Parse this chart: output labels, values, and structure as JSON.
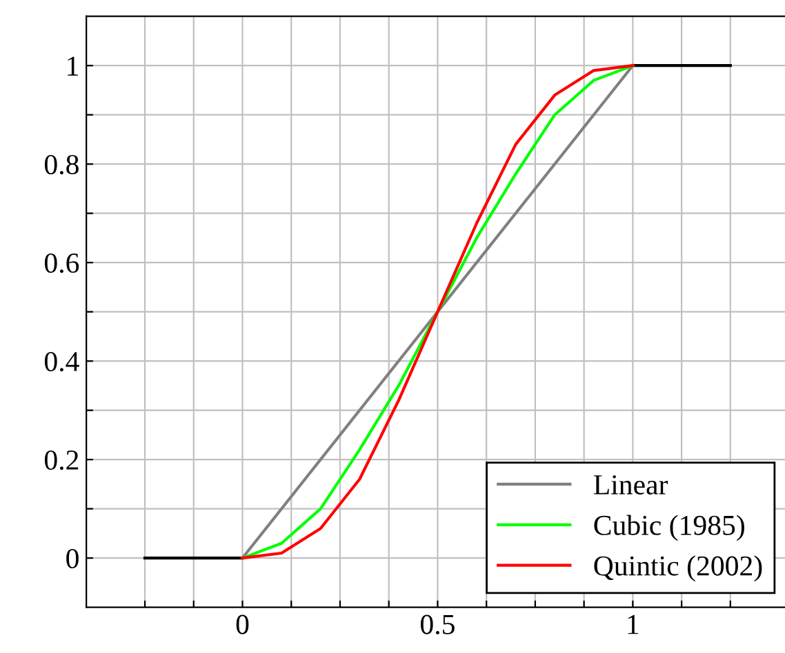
{
  "chart_data": {
    "type": "line",
    "xlim": [
      -0.4,
      1.4
    ],
    "ylim": [
      -0.1,
      1.1
    ],
    "xticks": [
      {
        "value": -0.25,
        "label": null
      },
      {
        "value": -0.125,
        "label": null
      },
      0,
      {
        "value": 0.125,
        "label": null
      },
      {
        "value": 0.25,
        "label": null
      },
      {
        "value": 0.375,
        "label": null
      },
      0.5,
      {
        "value": 0.625,
        "label": null
      },
      {
        "value": 0.75,
        "label": null
      },
      {
        "value": 0.875,
        "label": null
      },
      1,
      {
        "value": 1.125,
        "label": null
      },
      {
        "value": 1.25,
        "label": null
      }
    ],
    "yticks": [
      0,
      {
        "value": 0.1,
        "label": null
      },
      0.2,
      {
        "value": 0.3,
        "label": null
      },
      0.4,
      {
        "value": 0.5,
        "label": null
      },
      0.6,
      {
        "value": 0.7,
        "label": null
      },
      0.8,
      {
        "value": 0.9,
        "label": null
      },
      1
    ],
    "grid": true,
    "legend": "bottom right",
    "marker": "none",
    "line_style": "solid",
    "series": [
      {
        "color": "#000000",
        "x": [
          -0.25,
          0
        ],
        "values": [
          0,
          0
        ]
      },
      {
        "color": "#000000",
        "x": [
          1,
          1.25
        ],
        "values": [
          1,
          1
        ]
      },
      {
        "name": "Linear",
        "color": "#808080",
        "x": [
          0,
          1
        ],
        "values": [
          0,
          1
        ]
      },
      {
        "name": "Cubic (1985)",
        "color": "#00ff00",
        "x": [
          0,
          0.1,
          0.2,
          0.3,
          0.4,
          0.5,
          0.6,
          0.7,
          0.8,
          0.9,
          1
        ],
        "values": [
          0,
          0.03,
          0.1,
          0.22,
          0.35,
          0.5,
          0.65,
          0.78,
          0.9,
          0.97,
          1
        ]
      },
      {
        "name": "Quintic (2002)",
        "color": "#ff0000",
        "x": [
          0,
          0.1,
          0.2,
          0.3,
          0.4,
          0.5,
          0.6,
          0.7,
          0.8,
          0.9,
          1
        ],
        "values": [
          0,
          0.01,
          0.06,
          0.16,
          0.32,
          0.5,
          0.68,
          0.84,
          0.94,
          0.99,
          1
        ]
      }
    ]
  }
}
